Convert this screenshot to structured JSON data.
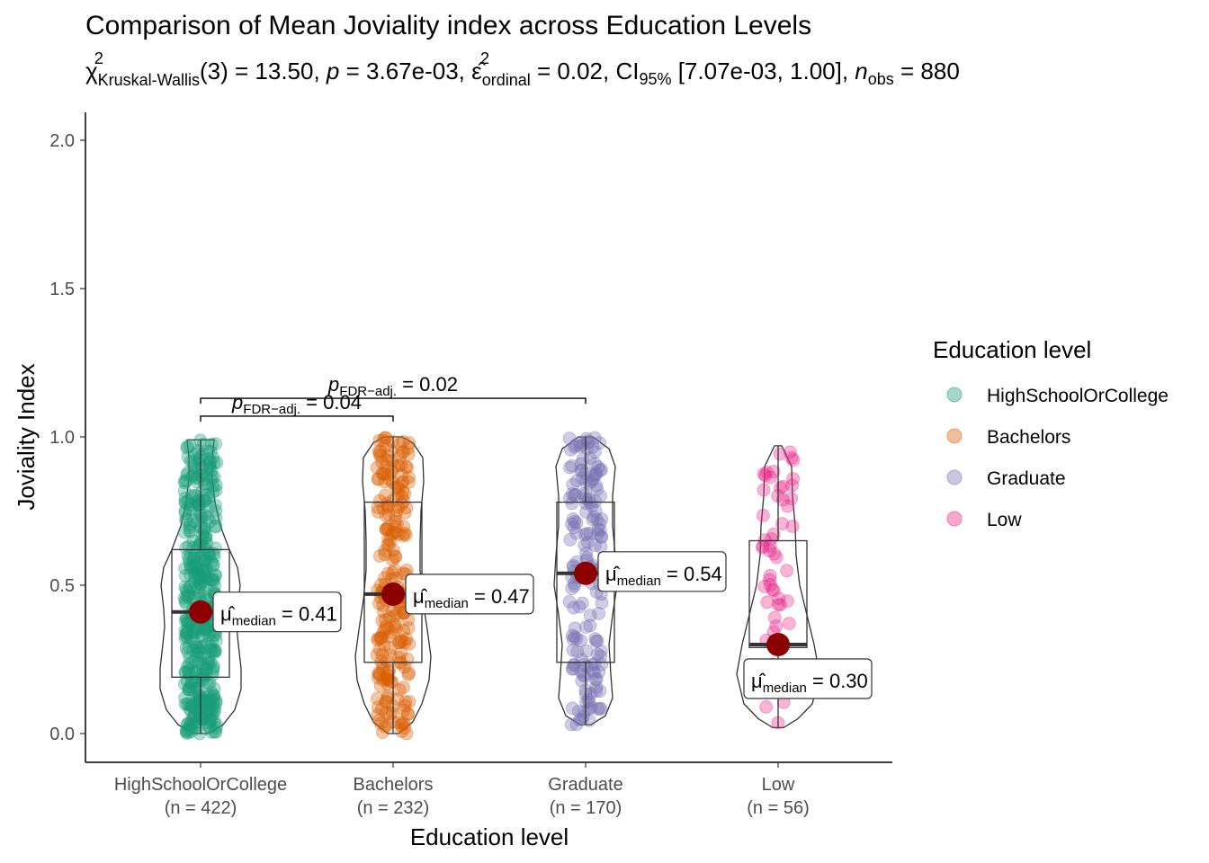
{
  "chart_data": {
    "type": "box-violin",
    "title": "Comparison of Mean Joviality index across Education Levels",
    "subtitle": {
      "statistic_symbol": "χ",
      "statistic_superscript": "2",
      "statistic_subscript": "Kruskal-Wallis",
      "df_text": "(3) = 13.50, ",
      "p_symbol": "p",
      "p_text": " = 3.67e-03, ",
      "effect_symbol": "ε̂",
      "effect_superscript": "2",
      "effect_subscript": "ordinal",
      "effect_text": " = 0.02, CI",
      "ci_subscript": "95%",
      "ci_text": " [7.07e-03, 1.00], ",
      "n_symbol": "n",
      "n_subscript": "obs",
      "n_text": " = 880"
    },
    "xlabel": "Education level",
    "ylabel": "Joviality Index",
    "ylim": [
      -0.1,
      2.1
    ],
    "yticks": [
      0.0,
      0.5,
      1.0,
      1.5,
      2.0
    ],
    "ytick_labels": [
      "0.0",
      "0.5",
      "1.0",
      "1.5",
      "2.0"
    ],
    "grid": false,
    "legend": {
      "title": "Education level",
      "position": "right",
      "items": [
        "HighSchoolOrCollege",
        "Bachelors",
        "Graduate",
        "Low"
      ]
    },
    "groups": [
      {
        "name": "HighSchoolOrCollege",
        "n_label": "(n = 422)",
        "n": 422,
        "color": "#1b9e77",
        "q1": 0.19,
        "median": 0.41,
        "q3": 0.62,
        "min": 0.0,
        "max": 0.99,
        "median_label_symbol": "μ̂",
        "median_label_sub": "median",
        "median_label_value": " = 0.41"
      },
      {
        "name": "Bachelors",
        "n_label": "(n = 232)",
        "n": 232,
        "color": "#d95f02",
        "q1": 0.24,
        "median": 0.47,
        "q3": 0.78,
        "min": 0.0,
        "max": 1.0,
        "median_label_symbol": "μ̂",
        "median_label_sub": "median",
        "median_label_value": " = 0.47"
      },
      {
        "name": "Graduate",
        "n_label": "(n = 170)",
        "n": 170,
        "color": "#7570b3",
        "q1": 0.24,
        "median": 0.54,
        "q3": 0.78,
        "min": 0.03,
        "max": 1.0,
        "median_label_symbol": "μ̂",
        "median_label_sub": "median",
        "median_label_value": " = 0.54"
      },
      {
        "name": "Low",
        "n_label": "(n = 56)",
        "n": 56,
        "color": "#e7298a",
        "q1": 0.29,
        "median": 0.3,
        "q3": 0.65,
        "min": 0.02,
        "max": 0.97,
        "median_label_symbol": "μ̂",
        "median_label_sub": "median",
        "median_label_value": " = 0.30"
      }
    ],
    "pairwise": [
      {
        "from": "HighSchoolOrCollege",
        "to": "Bachelors",
        "y": 1.07,
        "p_symbol": "p",
        "p_sub": "FDR−adj.",
        "p_text": " = 0.04"
      },
      {
        "from": "HighSchoolOrCollege",
        "to": "Graduate",
        "y": 1.13,
        "p_symbol": "p",
        "p_sub": "FDR−adj.",
        "p_text": " = 0.02"
      }
    ]
  }
}
